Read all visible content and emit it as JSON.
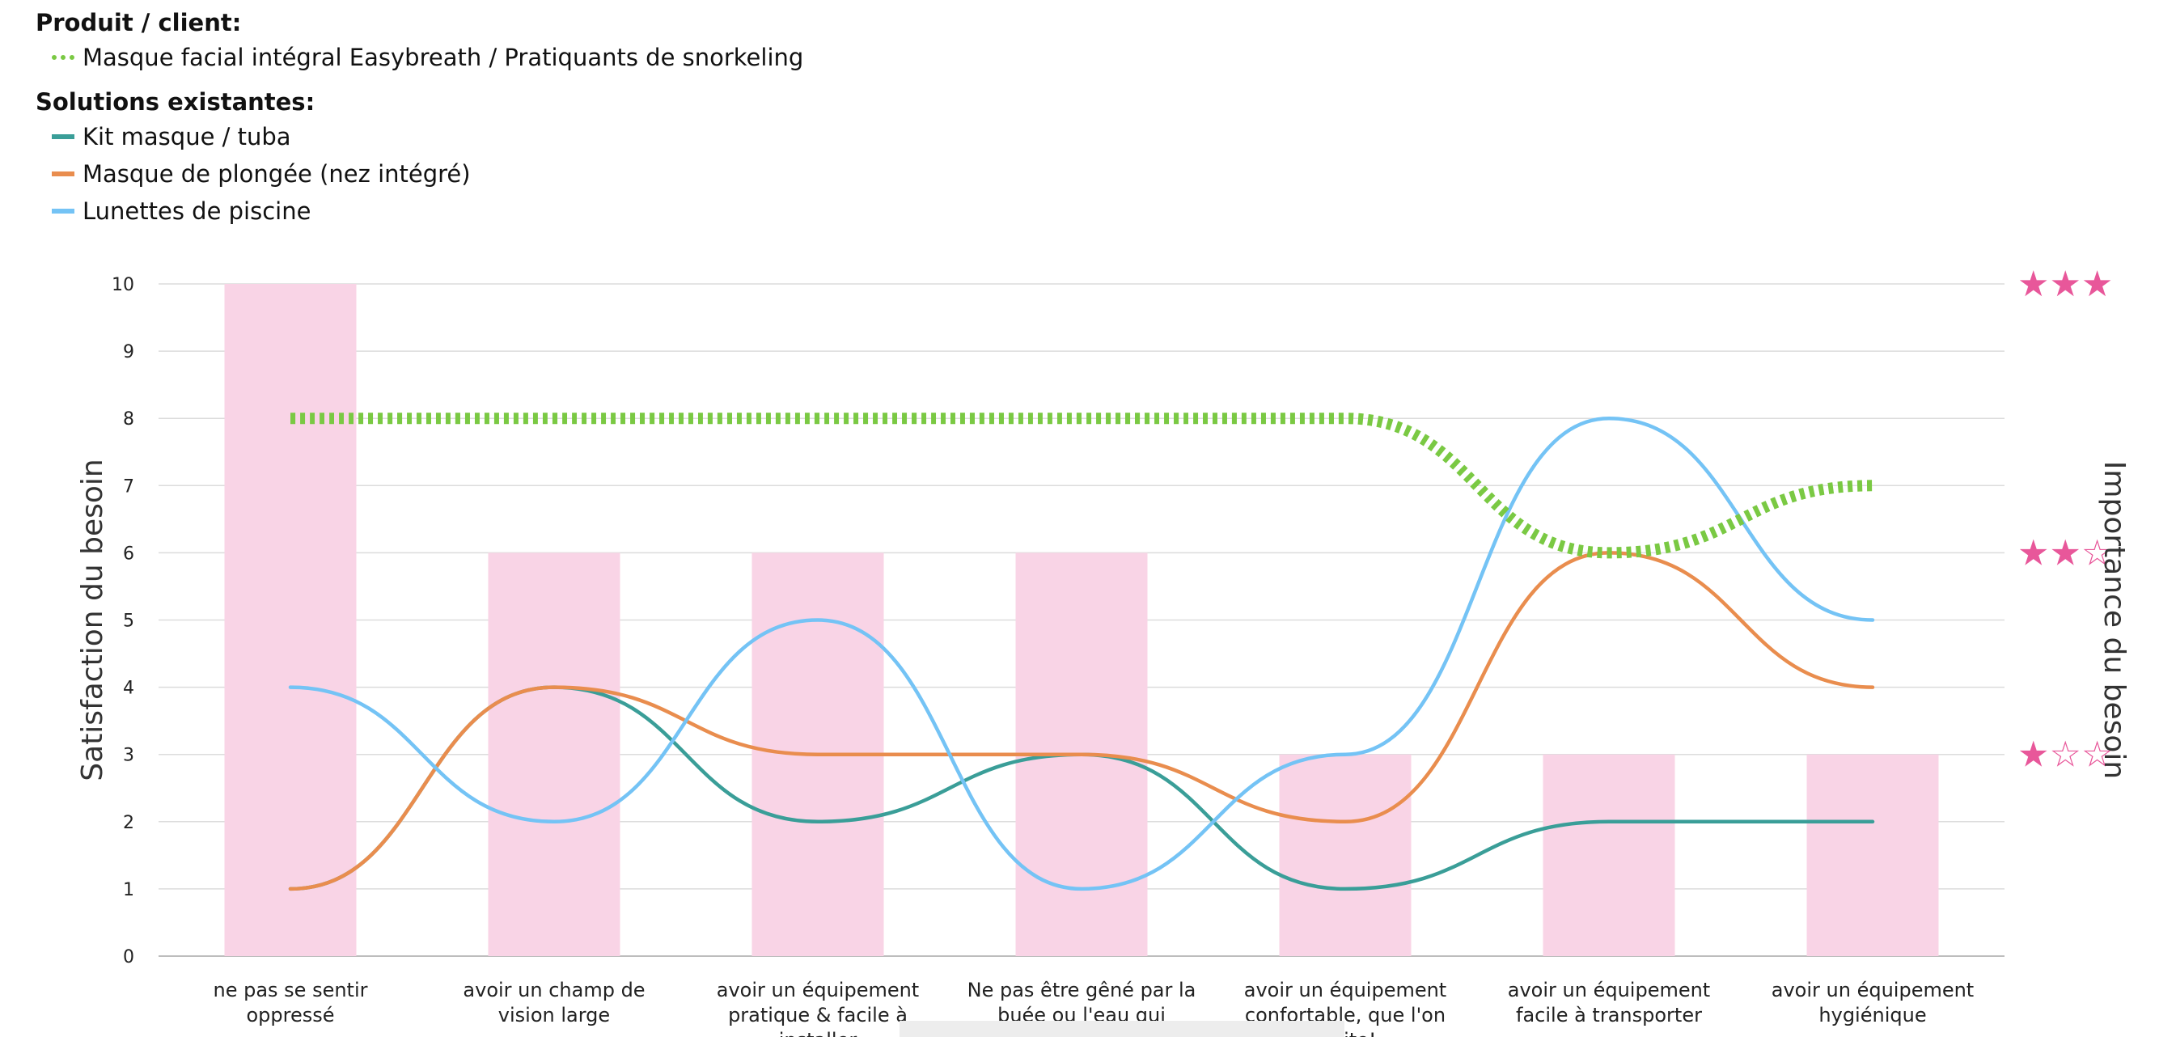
{
  "legend": {
    "product_heading": "Produit / client:",
    "product_item": {
      "label": "Masque facial intégral Easybreath / Pratiquants de snorkeling",
      "color": "#7ac943",
      "style": "dotted"
    },
    "existing_heading": "Solutions existantes:",
    "existing_items": [
      {
        "label": "Kit masque / tuba",
        "color": "#3a9e98"
      },
      {
        "label": "Masque de plongée (nez intégré)",
        "color": "#e98d4e"
      },
      {
        "label": "Lunettes de piscine",
        "color": "#74c3f5"
      }
    ]
  },
  "chart_data": {
    "type": "line",
    "ylabel": "Satisfaction du besoin",
    "y2label": "Importance du besoin",
    "ylim": [
      0,
      10
    ],
    "yticks": [
      "0",
      "1",
      "2",
      "3",
      "4",
      "5",
      "6",
      "7",
      "8",
      "9",
      "10"
    ],
    "grid": true,
    "categories": [
      [
        "ne pas se sentir",
        "oppressé"
      ],
      [
        "avoir un champ de",
        "vision large"
      ],
      [
        "avoir un équipement",
        "pratique & facile à",
        "installer"
      ],
      [
        "Ne pas être gêné par la",
        "buée ou l'eau qui"
      ],
      [
        "avoir un équipement",
        "confortable, que l'on",
        "e vite!"
      ],
      [
        "avoir un équipement",
        "facile à transporter"
      ],
      [
        "avoir un équipement",
        "hygiénique"
      ]
    ],
    "importance_bars": {
      "color": "#f9d4e6",
      "values": [
        10,
        6,
        6,
        6,
        3,
        3,
        3
      ]
    },
    "importance_scale": [
      {
        "value": 10,
        "label": "★★★"
      },
      {
        "value": 6,
        "label": "★★☆"
      },
      {
        "value": 3,
        "label": "★☆☆"
      }
    ],
    "series": [
      {
        "name": "Kit masque / tuba",
        "color": "#3a9e98",
        "values": [
          1,
          4,
          2,
          3,
          1,
          2,
          2
        ]
      },
      {
        "name": "Masque de plongée (nez intégré)",
        "color": "#e98d4e",
        "values": [
          1,
          4,
          3,
          3,
          2,
          6,
          4
        ]
      },
      {
        "name": "Lunettes de piscine",
        "color": "#74c3f5",
        "values": [
          4,
          2,
          5,
          1,
          3,
          8,
          5
        ]
      },
      {
        "name": "Masque facial intégral Easybreath / Pratiquants de snorkeling",
        "color": "#7ac943",
        "dotted": true,
        "values": [
          8,
          8,
          8,
          8,
          8,
          6,
          7
        ]
      }
    ]
  }
}
